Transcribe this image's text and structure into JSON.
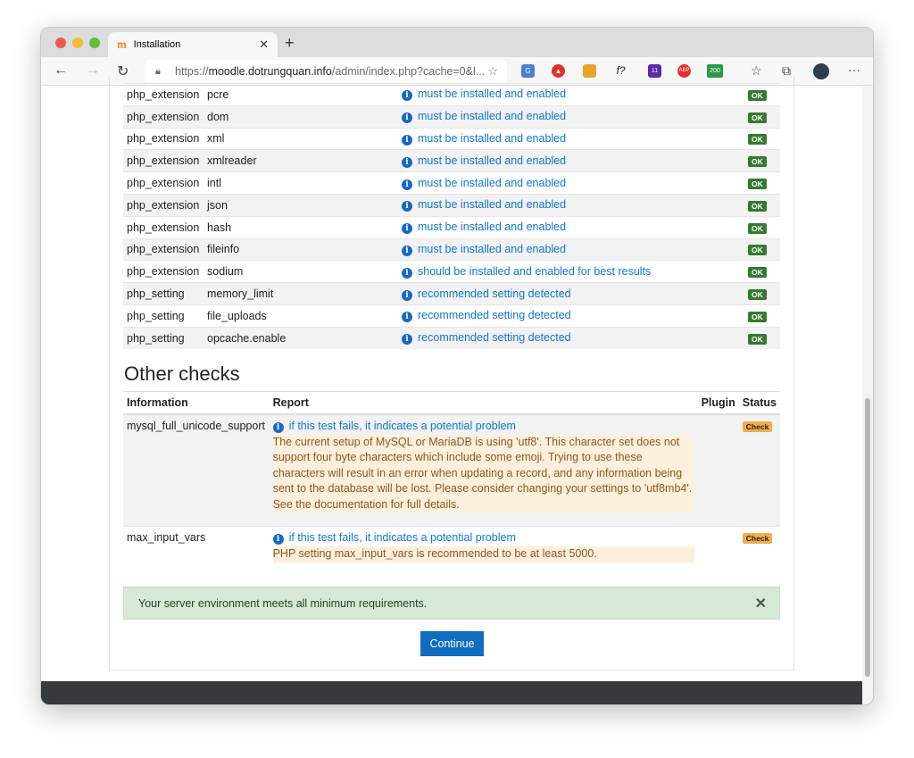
{
  "browser": {
    "tab_title": "Installation",
    "url_host": "moodle.dotrungquan.info",
    "url_prefix": "https://",
    "url_path": "/admin/index.php?cache=0&l...",
    "ext_badges": [
      "11",
      "200"
    ],
    "ext_abp": "ABP",
    "ext_f": "f?"
  },
  "env_rows": [
    {
      "name": "php_extension",
      "item": "pcre",
      "report": "must be installed and enabled",
      "status": "OK"
    },
    {
      "name": "php_extension",
      "item": "dom",
      "report": "must be installed and enabled",
      "status": "OK"
    },
    {
      "name": "php_extension",
      "item": "xml",
      "report": "must be installed and enabled",
      "status": "OK"
    },
    {
      "name": "php_extension",
      "item": "xmlreader",
      "report": "must be installed and enabled",
      "status": "OK"
    },
    {
      "name": "php_extension",
      "item": "intl",
      "report": "must be installed and enabled",
      "status": "OK"
    },
    {
      "name": "php_extension",
      "item": "json",
      "report": "must be installed and enabled",
      "status": "OK"
    },
    {
      "name": "php_extension",
      "item": "hash",
      "report": "must be installed and enabled",
      "status": "OK"
    },
    {
      "name": "php_extension",
      "item": "fileinfo",
      "report": "must be installed and enabled",
      "status": "OK"
    },
    {
      "name": "php_extension",
      "item": "sodium",
      "report": "should be installed and enabled for best results",
      "status": "OK"
    },
    {
      "name": "php_setting",
      "item": "memory_limit",
      "report": "recommended setting detected",
      "status": "OK"
    },
    {
      "name": "php_setting",
      "item": "file_uploads",
      "report": "recommended setting detected",
      "status": "OK"
    },
    {
      "name": "php_setting",
      "item": "opcache.enable",
      "report": "recommended setting detected",
      "status": "OK"
    }
  ],
  "other": {
    "title": "Other checks",
    "headers": [
      "Information",
      "Report",
      "Plugin",
      "Status"
    ],
    "rows": [
      {
        "info": "mysql_full_unicode_support",
        "link": "if this test fails, it indicates a potential problem",
        "message": "The current setup of MySQL or MariaDB is using 'utf8'. This character set does not support four byte characters which include some emoji. Trying to use these characters will result in an error when updating a record, and any information being sent to the database will be lost. Please consider changing your settings to 'utf8mb4'. See the documentation for full details.",
        "status": "Check"
      },
      {
        "info": "max_input_vars",
        "link": "if this test fails, it indicates a potential problem",
        "message": "PHP setting max_input_vars is recommended to be at least 5000.",
        "status": "Check"
      }
    ]
  },
  "alert": "Your server environment meets all minimum requirements.",
  "continue_label": "Continue"
}
